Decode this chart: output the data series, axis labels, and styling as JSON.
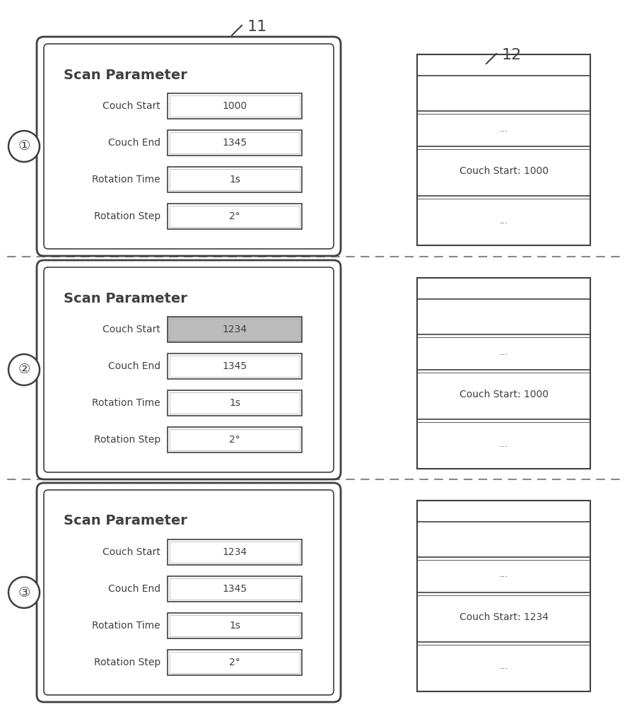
{
  "bg_color": "#ffffff",
  "line_color": "#404040",
  "gray_color": "#bbbbbb",
  "panels": [
    {
      "step": "①",
      "couch_start_value": "1000",
      "couch_start_highlighted": false,
      "couch_end_value": "1345",
      "rotation_time_value": "1s",
      "rotation_step_value": "2°",
      "db_couch_start": "Couch Start: 1000"
    },
    {
      "step": "②",
      "couch_start_value": "1234",
      "couch_start_highlighted": true,
      "couch_end_value": "1345",
      "rotation_time_value": "1s",
      "rotation_step_value": "2°",
      "db_couch_start": "Couch Start: 1000"
    },
    {
      "step": "③",
      "couch_start_value": "1234",
      "couch_start_highlighted": false,
      "couch_end_value": "1345",
      "rotation_time_value": "1s",
      "rotation_step_value": "2°",
      "db_couch_start": "Couch Start: 1234"
    }
  ],
  "scan_param_title": "Scan Parameter",
  "fields": [
    "Couch Start",
    "Couch End",
    "Rotation Time",
    "Rotation Step"
  ],
  "label11": "11",
  "label12": "12"
}
